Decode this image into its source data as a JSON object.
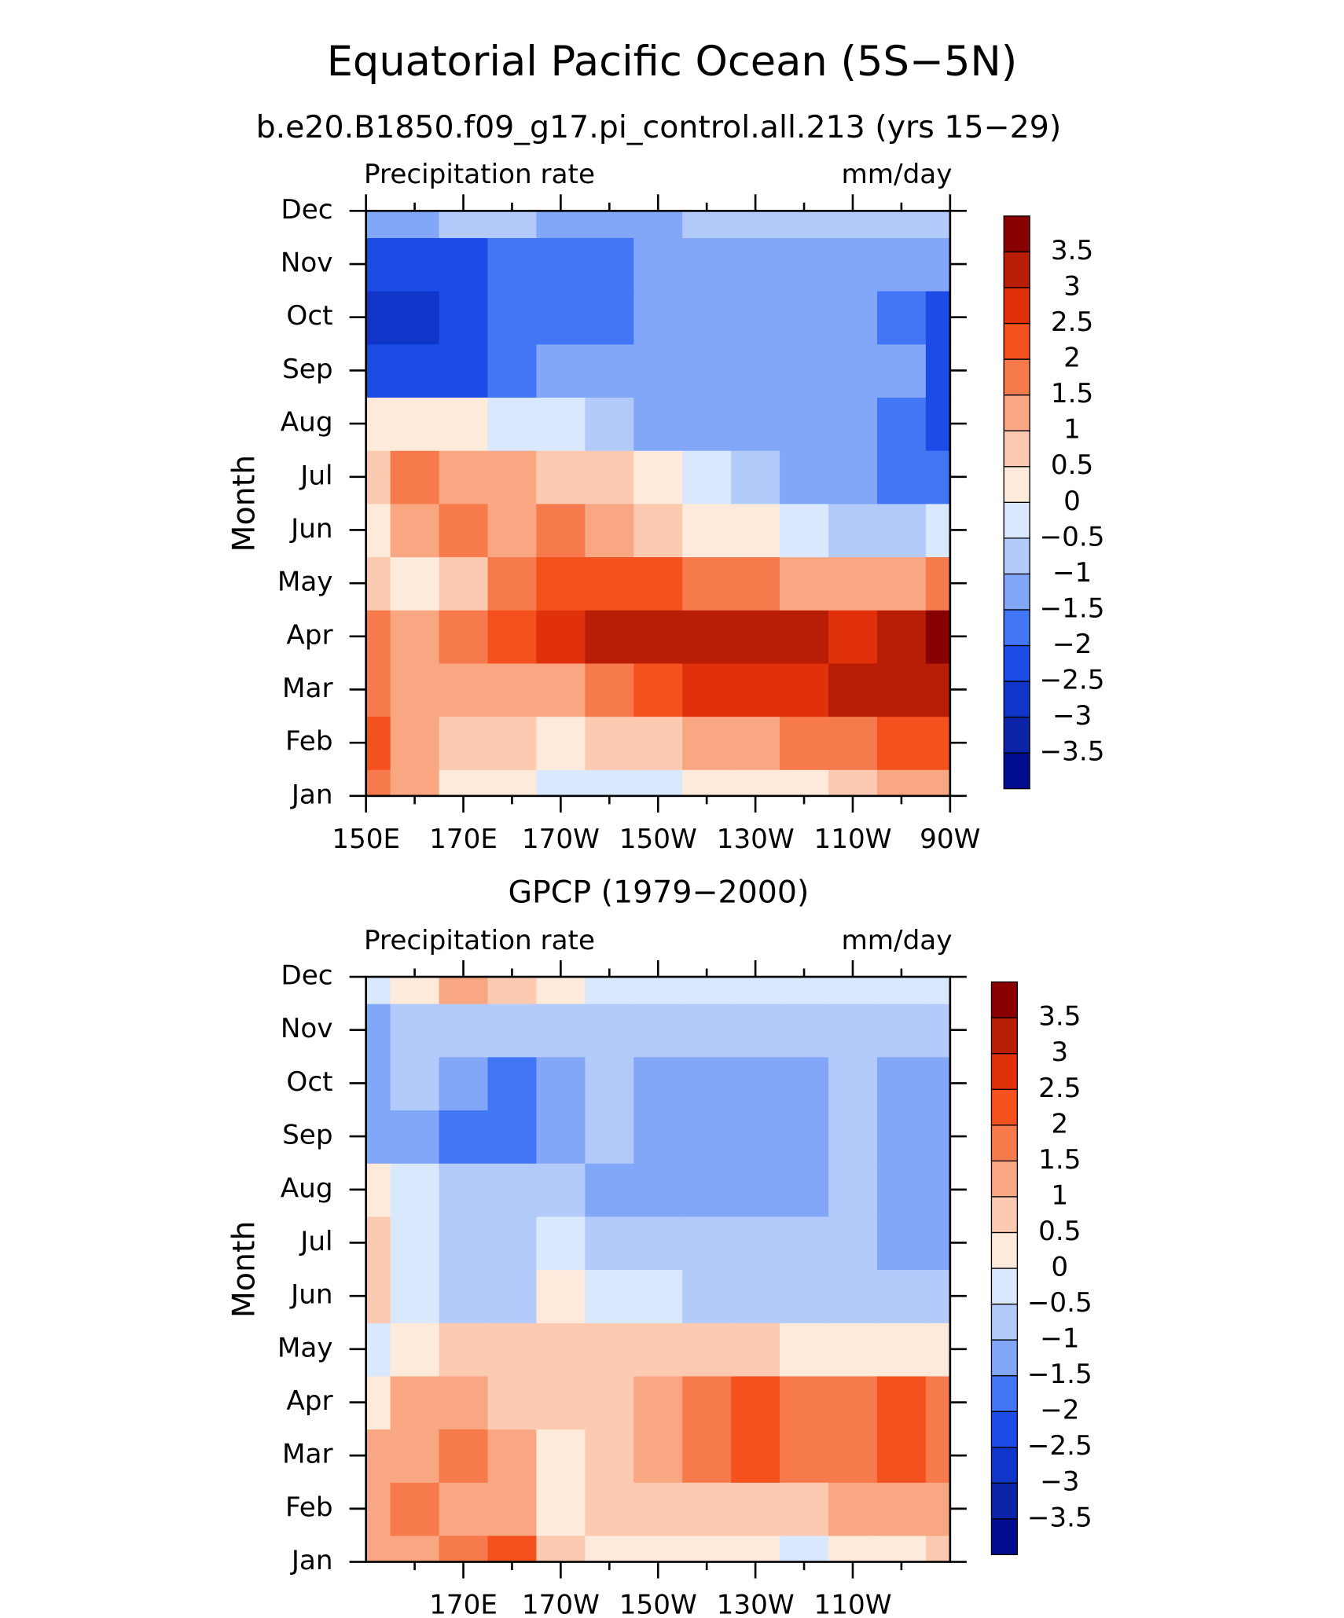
{
  "title": "Equatorial Pacific Ocean (5S−5N)",
  "chart_data": [
    {
      "type": "contour",
      "title": "b.e20.B1850.f09_g17.pi_control.all.213 (yrs 15−29)",
      "left_label": "Precipitation rate",
      "right_label": "mm/day",
      "y_label": "Month",
      "categories": [
        "Jan",
        "Feb",
        "Mar",
        "Apr",
        "May",
        "Jun",
        "Jul",
        "Aug",
        "Sep",
        "Oct",
        "Nov",
        "Dec"
      ],
      "x": [
        150,
        160,
        170,
        180,
        190,
        200,
        210,
        220,
        230,
        240,
        250,
        260,
        270
      ],
      "xlim": [
        150,
        270
      ],
      "xticks": [
        {
          "value": 150,
          "label": "150E"
        },
        {
          "value": 170,
          "label": "170E"
        },
        {
          "value": 190,
          "label": "170W"
        },
        {
          "value": 210,
          "label": "150W"
        },
        {
          "value": 230,
          "label": "130W"
        },
        {
          "value": 250,
          "label": "110W"
        },
        {
          "value": 270,
          "label": "90W"
        }
      ],
      "values": [
        [
          1.5,
          1,
          0.3,
          0.2,
          -0.3,
          -0.4,
          -0.2,
          0,
          0,
          0.3,
          0.6,
          1,
          1.2
        ],
        [
          2.2,
          1.2,
          0.8,
          0.5,
          0.2,
          0.5,
          0.8,
          1,
          1.3,
          1.5,
          1.8,
          2,
          2.2
        ],
        [
          1.5,
          1.3,
          1.2,
          1.0,
          1.3,
          1.7,
          2.2,
          2.6,
          2.8,
          2.9,
          3,
          3.2,
          3.4
        ],
        [
          1.8,
          1.3,
          1.8,
          2.2,
          2.5,
          3.0,
          3.1,
          3.2,
          3.1,
          3,
          2.8,
          3,
          3.7
        ],
        [
          0.8,
          0.4,
          0.6,
          1.5,
          2.0,
          2.2,
          2.0,
          1.8,
          1.6,
          1.4,
          1.3,
          1.3,
          1.8
        ],
        [
          0.3,
          1.2,
          1.8,
          1.2,
          1.6,
          1.2,
          0.8,
          0.4,
          0,
          -0.4,
          -0.7,
          -0.7,
          -0.3
        ],
        [
          0.8,
          1.5,
          1.4,
          1.0,
          0.8,
          0.5,
          0.2,
          -0.3,
          -0.8,
          -1.1,
          -1.3,
          -1.6,
          -2
        ],
        [
          0.3,
          0.3,
          0.1,
          -0.2,
          -0.5,
          -0.8,
          -1.1,
          -1.3,
          -1.3,
          -1.3,
          -1.4,
          -1.6,
          -2.1
        ],
        [
          -2.2,
          -2.4,
          -2.2,
          -1.8,
          -1.5,
          -1.3,
          -1.2,
          -1.2,
          -1.2,
          -1.2,
          -1.2,
          -1.5,
          -2.2
        ],
        [
          -2.8,
          -2.8,
          -2.4,
          -2.0,
          -1.8,
          -1.6,
          -1.3,
          -1.2,
          -1.2,
          -1.2,
          -1.2,
          -1.6,
          -2.2
        ],
        [
          -2.4,
          -2.4,
          -2.2,
          -1.8,
          -1.8,
          -1.6,
          -1.2,
          -1.2,
          -1.2,
          -1.1,
          -1.1,
          -1.2,
          -1.4
        ],
        [
          -1.2,
          -1.2,
          -1.0,
          -1.0,
          -1.1,
          -1.1,
          -1.1,
          -0.9,
          -0.8,
          -0.8,
          -0.8,
          -0.8,
          -0.9
        ]
      ],
      "levels": [
        {
          "value": -3.5,
          "label": "−3.5"
        },
        {
          "value": -3,
          "label": "−3"
        },
        {
          "value": -2.5,
          "label": "−2.5"
        },
        {
          "value": -2,
          "label": "−2"
        },
        {
          "value": -1.5,
          "label": "−1.5"
        },
        {
          "value": -1,
          "label": "−1"
        },
        {
          "value": -0.5,
          "label": "−0.5"
        },
        0,
        0.5,
        1,
        1.5,
        2,
        2.5,
        3,
        3.5
      ],
      "colors": [
        "#000c8e",
        "#0b24a8",
        "#0f35c9",
        "#1c4be8",
        "#4276f5",
        "#82a6f8",
        "#b3cbfa",
        "#d9e8fc",
        "#feeadb",
        "#fccab0",
        "#f9a682",
        "#f67a4b",
        "#f4511e",
        "#e0310a",
        "#b81e05",
        "#890000"
      ]
    },
    {
      "type": "contour",
      "title": "GPCP (1979−2000)",
      "left_label": "Precipitation rate",
      "right_label": "mm/day",
      "y_label": "Month",
      "categories": [
        "Jan",
        "Feb",
        "Mar",
        "Apr",
        "May",
        "Jun",
        "Jul",
        "Aug",
        "Sep",
        "Oct",
        "Nov",
        "Dec"
      ],
      "x": [
        150,
        160,
        170,
        180,
        190,
        200,
        210,
        220,
        230,
        240,
        250,
        260,
        270
      ],
      "xlim": [
        150,
        270
      ],
      "xticks": [
        {
          "value": 170,
          "label": "170E"
        },
        {
          "value": 190,
          "label": "170W"
        },
        {
          "value": 210,
          "label": "150W"
        },
        {
          "value": 230,
          "label": "130W"
        },
        {
          "value": 250,
          "label": "110W"
        }
      ],
      "values": [
        [
          1.2,
          1.3,
          1.8,
          2,
          0.8,
          0.4,
          0.3,
          0.2,
          0.1,
          -0.1,
          0.2,
          0.3,
          0.7
        ],
        [
          1.3,
          1.6,
          1.4,
          1.3,
          0.3,
          0.6,
          0.7,
          0.8,
          0.9,
          0.9,
          1,
          1.1,
          1.4
        ],
        [
          1.0,
          1.2,
          1.5,
          1.3,
          0.3,
          0.8,
          1.4,
          1.6,
          2.2,
          1.7,
          1.6,
          2.2,
          1.8
        ],
        [
          0.4,
          1.2,
          1.2,
          0.8,
          0.6,
          0.7,
          1.4,
          1.8,
          2.1,
          1.9,
          1.6,
          2.0,
          1.7
        ],
        [
          -0.3,
          0.4,
          0.5,
          0.6,
          0.9,
          0.8,
          0.7,
          0.6,
          0.5,
          0.4,
          0.3,
          0.2,
          0.1
        ],
        [
          0.7,
          -0.3,
          -0.8,
          -0.6,
          0.1,
          -0.1,
          -0.4,
          -0.6,
          -0.7,
          -0.8,
          -0.9,
          -0.9,
          -0.8
        ],
        [
          0.8,
          -0.3,
          -0.6,
          -0.7,
          -0.5,
          -0.6,
          -0.8,
          -0.8,
          -0.8,
          -0.8,
          -0.9,
          -1.2,
          -1.2
        ],
        [
          0.3,
          -0.3,
          -0.8,
          -0.9,
          -1.0,
          -1.1,
          -1.3,
          -1.2,
          -1.2,
          -1.1,
          -1.0,
          -1.3,
          -1.2
        ],
        [
          -1.3,
          -1.4,
          -1.9,
          -1.8,
          -1.2,
          -1.0,
          -1.3,
          -1.3,
          -1.3,
          -1.3,
          -1.0,
          -1.2,
          -1.1
        ],
        [
          -1.3,
          -1.0,
          -1.5,
          -1.6,
          -1.2,
          -0.9,
          -1.1,
          -1.2,
          -1.2,
          -1.2,
          -0.9,
          -1.1,
          -1.2
        ],
        [
          -1.2,
          -0.8,
          -0.8,
          -0.7,
          -0.8,
          -0.7,
          -0.6,
          -0.6,
          -0.6,
          -0.6,
          -0.6,
          -0.7,
          -0.8
        ],
        [
          -0.3,
          0.4,
          1.0,
          0.6,
          0.2,
          -0.2,
          -0.3,
          -0.3,
          -0.2,
          -0.4,
          -0.4,
          -0.5,
          -0.5
        ]
      ],
      "levels": [
        {
          "value": -3.5,
          "label": "−3.5"
        },
        {
          "value": -3,
          "label": "−3"
        },
        {
          "value": -2.5,
          "label": "−2.5"
        },
        {
          "value": -2,
          "label": "−2"
        },
        {
          "value": -1.5,
          "label": "−1.5"
        },
        {
          "value": -1,
          "label": "−1"
        },
        {
          "value": -0.5,
          "label": "−0.5"
        },
        0,
        0.5,
        1,
        1.5,
        2,
        2.5,
        3,
        3.5
      ],
      "colors": [
        "#000c8e",
        "#0b24a8",
        "#0f35c9",
        "#1c4be8",
        "#4276f5",
        "#82a6f8",
        "#b3cbfa",
        "#d9e8fc",
        "#feeadb",
        "#fccab0",
        "#f9a682",
        "#f67a4b",
        "#f4511e",
        "#e0310a",
        "#b81e05",
        "#890000"
      ]
    }
  ]
}
